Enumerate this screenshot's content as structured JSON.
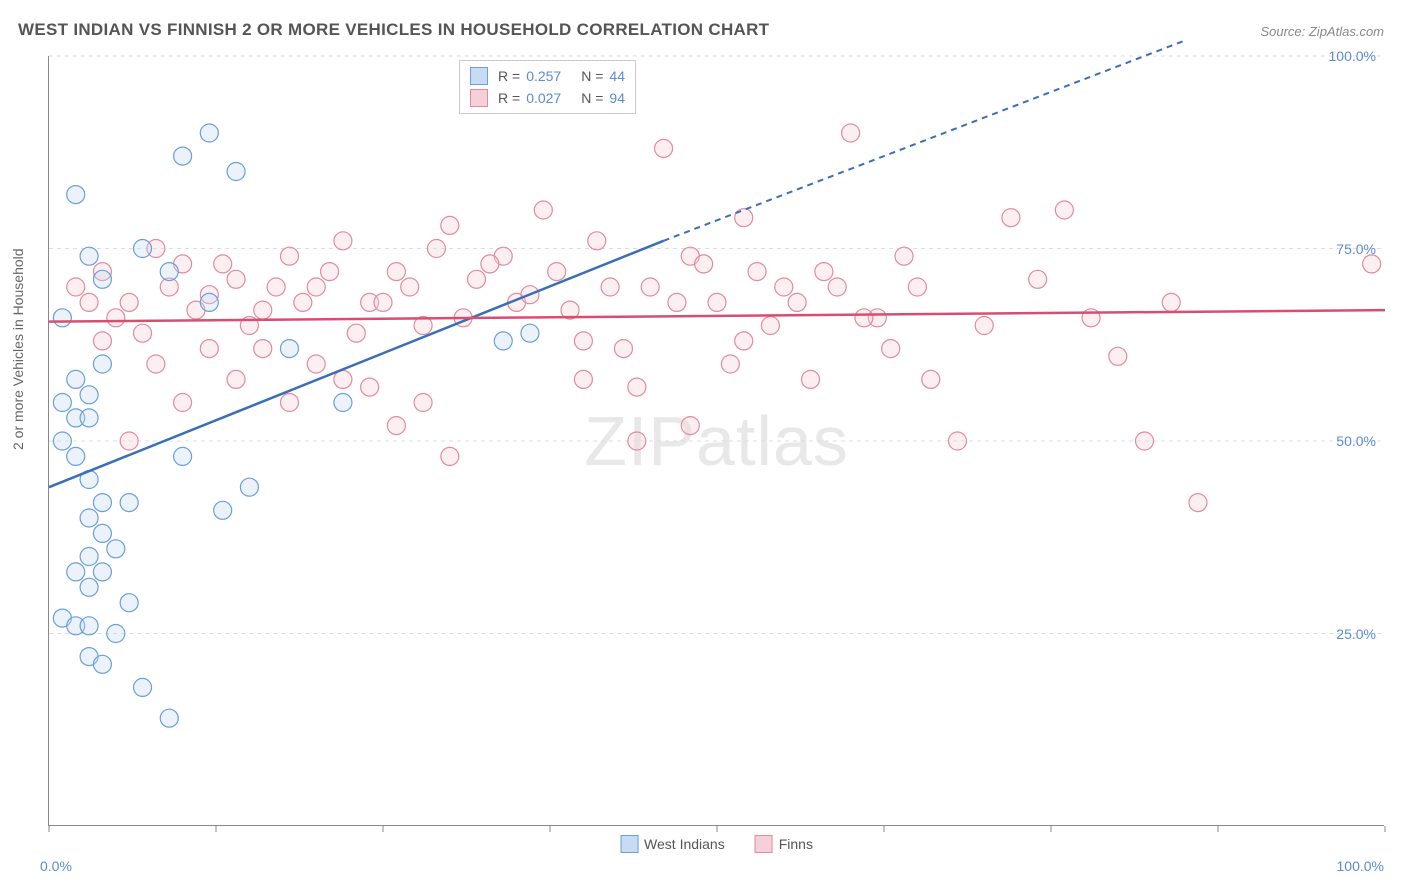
{
  "title": "WEST INDIAN VS FINNISH 2 OR MORE VEHICLES IN HOUSEHOLD CORRELATION CHART",
  "source": "Source: ZipAtlas.com",
  "y_axis_label": "2 or more Vehicles in Household",
  "watermark": "ZIPatlas",
  "chart": {
    "type": "scatter",
    "xlim": [
      0,
      100
    ],
    "ylim": [
      0,
      100
    ],
    "x_ticks": [
      0,
      12.5,
      25,
      37.5,
      50,
      62.5,
      75,
      87.5,
      100
    ],
    "x_tick_labels": {
      "0": "0.0%",
      "100": "100.0%"
    },
    "y_gridlines": [
      25,
      50,
      75,
      100
    ],
    "y_tick_labels": {
      "25": "25.0%",
      "50": "50.0%",
      "75": "75.0%",
      "100": "100.0%"
    },
    "background_color": "#ffffff",
    "grid_color": "#dddddd",
    "axis_color": "#888888",
    "marker_radius": 9,
    "marker_stroke_width": 1.2,
    "marker_fill_opacity": 0.35,
    "series": [
      {
        "name": "West Indians",
        "color_fill": "#c7dbf2",
        "color_stroke": "#6a9fd8",
        "R": "0.257",
        "N": "44",
        "regression": {
          "x1": 0,
          "y1": 44,
          "x2": 46,
          "y2": 76,
          "dashed_to_x": 85,
          "dashed_to_y": 102,
          "stroke": "#3b6fb5",
          "width": 2.5
        },
        "points": [
          [
            1,
            66
          ],
          [
            2,
            82
          ],
          [
            4,
            71
          ],
          [
            3,
            74
          ],
          [
            3,
            56
          ],
          [
            2,
            58
          ],
          [
            4,
            60
          ],
          [
            1,
            55
          ],
          [
            2,
            53
          ],
          [
            3,
            53
          ],
          [
            1,
            50
          ],
          [
            2,
            48
          ],
          [
            3,
            45
          ],
          [
            4,
            42
          ],
          [
            6,
            42
          ],
          [
            3,
            40
          ],
          [
            4,
            38
          ],
          [
            5,
            36
          ],
          [
            3,
            35
          ],
          [
            4,
            33
          ],
          [
            2,
            33
          ],
          [
            3,
            31
          ],
          [
            6,
            29
          ],
          [
            1,
            27
          ],
          [
            2,
            26
          ],
          [
            3,
            26
          ],
          [
            5,
            25
          ],
          [
            3,
            22
          ],
          [
            4,
            21
          ],
          [
            7,
            18
          ],
          [
            9,
            14
          ],
          [
            12,
            90
          ],
          [
            10,
            87
          ],
          [
            14,
            85
          ],
          [
            7,
            75
          ],
          [
            9,
            72
          ],
          [
            12,
            68
          ],
          [
            18,
            62
          ],
          [
            22,
            55
          ],
          [
            10,
            48
          ],
          [
            15,
            44
          ],
          [
            13,
            41
          ],
          [
            34,
            63
          ],
          [
            36,
            64
          ]
        ]
      },
      {
        "name": "Finns",
        "color_fill": "#f5d0d8",
        "color_stroke": "#e28a9e",
        "R": "0.027",
        "N": "94",
        "regression": {
          "x1": 0,
          "y1": 65.5,
          "x2": 100,
          "y2": 67,
          "stroke": "#d94e70",
          "width": 2.5
        },
        "points": [
          [
            2,
            70
          ],
          [
            4,
            72
          ],
          [
            6,
            68
          ],
          [
            8,
            75
          ],
          [
            10,
            73
          ],
          [
            12,
            69
          ],
          [
            14,
            71
          ],
          [
            16,
            67
          ],
          [
            18,
            74
          ],
          [
            20,
            70
          ],
          [
            22,
            76
          ],
          [
            24,
            68
          ],
          [
            26,
            72
          ],
          [
            28,
            65
          ],
          [
            30,
            78
          ],
          [
            32,
            71
          ],
          [
            34,
            74
          ],
          [
            35,
            68
          ],
          [
            37,
            80
          ],
          [
            38,
            72
          ],
          [
            40,
            63
          ],
          [
            42,
            70
          ],
          [
            44,
            57
          ],
          [
            46,
            88
          ],
          [
            48,
            74
          ],
          [
            50,
            68
          ],
          [
            52,
            79
          ],
          [
            54,
            65
          ],
          [
            55,
            70
          ],
          [
            57,
            58
          ],
          [
            58,
            72
          ],
          [
            60,
            90
          ],
          [
            62,
            66
          ],
          [
            64,
            74
          ],
          [
            66,
            58
          ],
          [
            68,
            50
          ],
          [
            72,
            79
          ],
          [
            74,
            71
          ],
          [
            78,
            66
          ],
          [
            80,
            61
          ],
          [
            84,
            68
          ],
          [
            86,
            42
          ],
          [
            99,
            73
          ],
          [
            3,
            68
          ],
          [
            5,
            66
          ],
          [
            7,
            64
          ],
          [
            9,
            70
          ],
          [
            11,
            67
          ],
          [
            13,
            73
          ],
          [
            15,
            65
          ],
          [
            17,
            70
          ],
          [
            19,
            68
          ],
          [
            21,
            72
          ],
          [
            23,
            64
          ],
          [
            25,
            68
          ],
          [
            27,
            70
          ],
          [
            29,
            75
          ],
          [
            31,
            66
          ],
          [
            33,
            73
          ],
          [
            36,
            69
          ],
          [
            39,
            67
          ],
          [
            41,
            76
          ],
          [
            43,
            62
          ],
          [
            45,
            70
          ],
          [
            47,
            68
          ],
          [
            49,
            73
          ],
          [
            51,
            60
          ],
          [
            53,
            72
          ],
          [
            56,
            68
          ],
          [
            59,
            70
          ],
          [
            61,
            66
          ],
          [
            63,
            62
          ],
          [
            65,
            70
          ],
          [
            70,
            65
          ],
          [
            76,
            80
          ],
          [
            82,
            50
          ],
          [
            30,
            48
          ],
          [
            24,
            57
          ],
          [
            20,
            60
          ],
          [
            26,
            52
          ],
          [
            16,
            62
          ],
          [
            14,
            58
          ],
          [
            10,
            55
          ],
          [
            8,
            60
          ],
          [
            6,
            50
          ],
          [
            4,
            63
          ],
          [
            12,
            62
          ],
          [
            18,
            55
          ],
          [
            22,
            58
          ],
          [
            28,
            55
          ],
          [
            48,
            52
          ],
          [
            44,
            50
          ],
          [
            40,
            58
          ],
          [
            52,
            63
          ]
        ]
      }
    ]
  },
  "legend_top": {
    "prefix_R": "R =",
    "prefix_N": "N ="
  },
  "bottom_legend": {
    "items": [
      "West Indians",
      "Finns"
    ]
  }
}
